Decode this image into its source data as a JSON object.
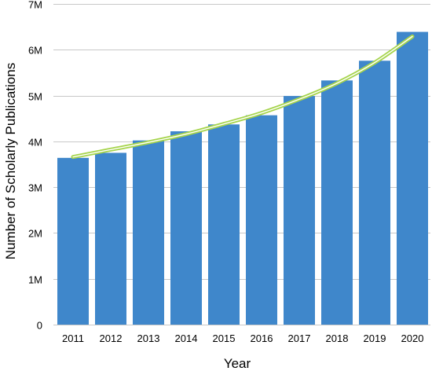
{
  "chart_data": {
    "type": "bar",
    "title": "",
    "xlabel": "Year",
    "ylabel": "Number of Scholarly Publications",
    "categories": [
      "2011",
      "2012",
      "2013",
      "2014",
      "2015",
      "2016",
      "2017",
      "2018",
      "2019",
      "2020"
    ],
    "values": [
      3.64,
      3.75,
      4.02,
      4.22,
      4.37,
      4.57,
      4.99,
      5.33,
      5.76,
      6.39
    ],
    "value_unit": "M",
    "ylim": [
      0,
      7
    ],
    "yticks": [
      0,
      1,
      2,
      3,
      4,
      5,
      6,
      7
    ],
    "ytick_labels": [
      "0",
      "1M",
      "2M",
      "3M",
      "4M",
      "5M",
      "6M",
      "7M"
    ],
    "grid": true,
    "bar_color": "#3f87cb",
    "trendline": {
      "type": "exponential",
      "color": "#a6d44c",
      "values": [
        3.66,
        3.82,
        3.98,
        4.16,
        4.38,
        4.62,
        4.92,
        5.27,
        5.72,
        6.29
      ]
    }
  }
}
